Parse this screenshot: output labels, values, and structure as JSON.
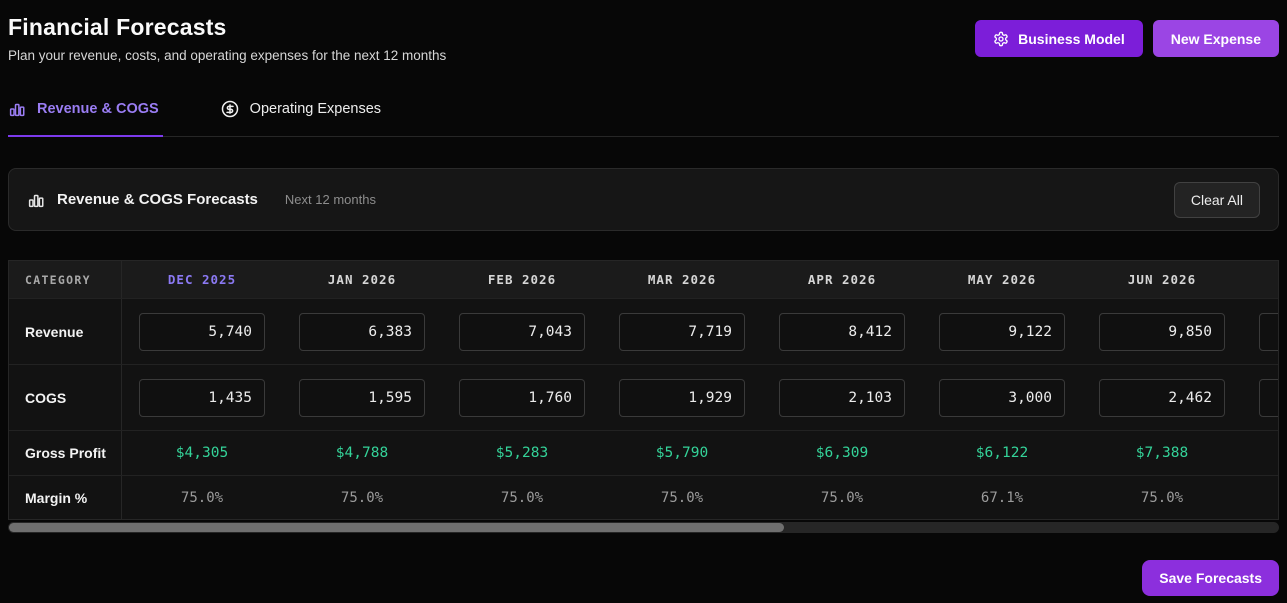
{
  "header": {
    "title": "Financial Forecasts",
    "subtitle": "Plan your revenue, costs, and operating expenses for the next 12 months",
    "business_model_label": "Business Model",
    "new_expense_label": "New Expense"
  },
  "tabs": [
    {
      "label": "Revenue & COGS",
      "icon": "bar-chart-icon",
      "active": true
    },
    {
      "label": "Operating Expenses",
      "icon": "dollar-circle-icon",
      "active": false
    }
  ],
  "panel": {
    "title": "Revenue & COGS Forecasts",
    "subtitle": "Next 12 months",
    "clear_all_label": "Clear All"
  },
  "table": {
    "category_header": "CATEGORY",
    "months": [
      "DEC 2025",
      "JAN 2026",
      "FEB 2026",
      "MAR 2026",
      "APR 2026",
      "MAY 2026",
      "JUN 2026"
    ],
    "highlighted_month": "DEC 2025",
    "rows": {
      "revenue": {
        "label": "Revenue",
        "values": [
          "5,740",
          "6,383",
          "7,043",
          "7,719",
          "8,412",
          "9,122",
          "9,850"
        ]
      },
      "cogs": {
        "label": "COGS",
        "values": [
          "1,435",
          "1,595",
          "1,760",
          "1,929",
          "2,103",
          "3,000",
          "2,462"
        ]
      },
      "gross_profit": {
        "label": "Gross Profit",
        "values": [
          "$4,305",
          "$4,788",
          "$5,283",
          "$5,790",
          "$6,309",
          "$6,122",
          "$7,388"
        ]
      },
      "margin": {
        "label": "Margin %",
        "values": [
          "75.0%",
          "75.0%",
          "75.0%",
          "75.0%",
          "75.0%",
          "67.1%",
          "75.0%"
        ]
      }
    },
    "partial_column": {
      "revenue": "",
      "cogs": ""
    }
  },
  "footer": {
    "save_label": "Save Forecasts"
  },
  "colors": {
    "accent": "#7c3aed",
    "tab_active": "#9a7df3",
    "month_active": "#8b79f3",
    "green": "#34d399",
    "btn_business": "#7c1ed9",
    "btn_new": "#9b45e4",
    "btn_save": "#8c2fdd"
  }
}
